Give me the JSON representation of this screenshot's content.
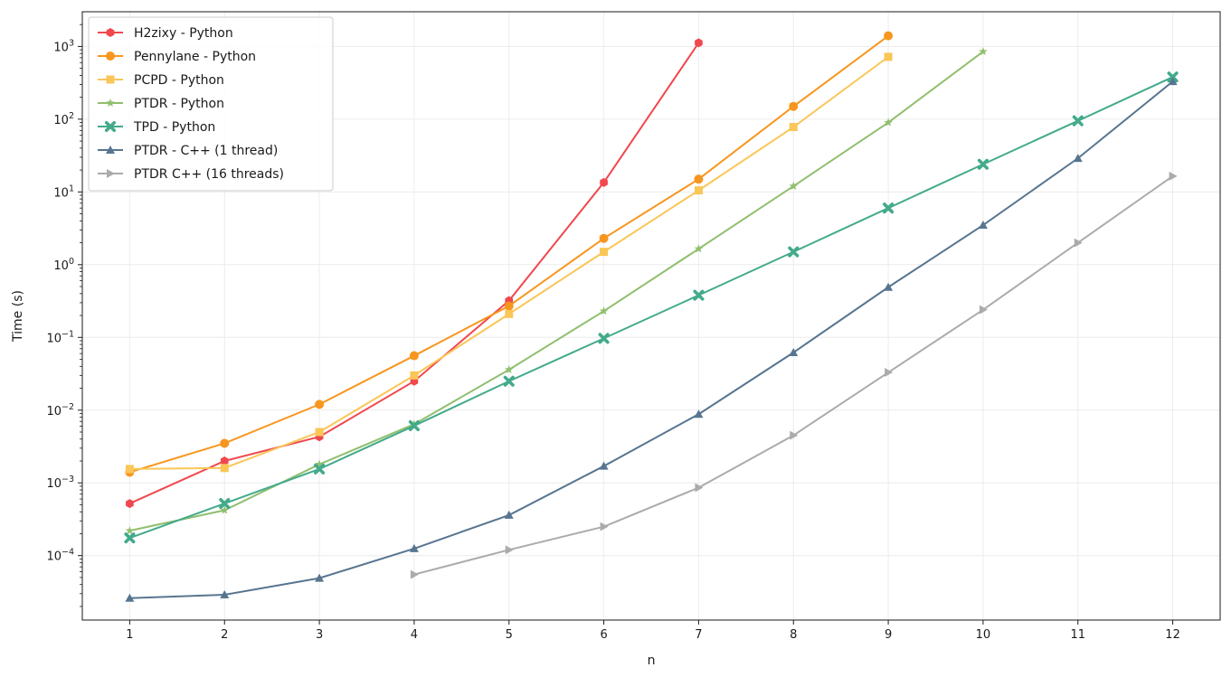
{
  "chart_data": {
    "type": "line",
    "title": "",
    "xlabel": "n",
    "ylabel": "Time (s)",
    "yscale": "log",
    "xlim": [
      0.5,
      12.5
    ],
    "ylim": [
      1.3e-05,
      3000
    ],
    "x_ticks": [
      1,
      2,
      3,
      4,
      5,
      6,
      7,
      8,
      9,
      10,
      11,
      12
    ],
    "y_ticks": [
      {
        "value": 0.0001,
        "base": "10",
        "exp": "−4"
      },
      {
        "value": 0.001,
        "base": "10",
        "exp": "−3"
      },
      {
        "value": 0.01,
        "base": "10",
        "exp": "−2"
      },
      {
        "value": 0.1,
        "base": "10",
        "exp": "−1"
      },
      {
        "value": 1,
        "base": "10",
        "exp": "0"
      },
      {
        "value": 10,
        "base": "10",
        "exp": "1"
      },
      {
        "value": 100,
        "base": "10",
        "exp": "2"
      },
      {
        "value": 1000,
        "base": "10",
        "exp": "3"
      }
    ],
    "grid": true,
    "legend_position": "top-left",
    "series": [
      {
        "name": "H2zixy - Python",
        "color": "#f0484e",
        "marker": "hexagon",
        "x": [
          1,
          2,
          3,
          4,
          5,
          6,
          7
        ],
        "y": [
          0.00052,
          0.002,
          0.0043,
          0.025,
          0.32,
          13.5,
          1120
        ]
      },
      {
        "name": "Pennylane - Python",
        "color": "#f7961e",
        "marker": "circle",
        "x": [
          1,
          2,
          3,
          4,
          5,
          6,
          7,
          8,
          9
        ],
        "y": [
          0.0014,
          0.0035,
          0.012,
          0.056,
          0.27,
          2.3,
          15,
          150,
          1400
        ]
      },
      {
        "name": "PCPD - Python",
        "color": "#fac657",
        "marker": "square",
        "x": [
          1,
          2,
          3,
          4,
          5,
          6,
          7,
          8,
          9
        ],
        "y": [
          0.00155,
          0.0016,
          0.005,
          0.03,
          0.21,
          1.5,
          10.5,
          78,
          720
        ]
      },
      {
        "name": "PTDR - Python",
        "color": "#90bf6e",
        "marker": "star",
        "x": [
          1,
          2,
          3,
          4,
          5,
          6,
          7,
          8,
          9,
          10
        ],
        "y": [
          0.00022,
          0.00042,
          0.0018,
          0.0064,
          0.036,
          0.23,
          1.65,
          12,
          90,
          850
        ]
      },
      {
        "name": "TPD - Python",
        "color": "#43aa8b",
        "marker": "x",
        "x": [
          1,
          2,
          3,
          4,
          5,
          6,
          7,
          8,
          9,
          10,
          11,
          12
        ],
        "y": [
          0.000175,
          0.00052,
          0.00155,
          0.0061,
          0.025,
          0.097,
          0.38,
          1.5,
          6,
          24,
          95,
          380
        ]
      },
      {
        "name": "PTDR - C++ (1 thread)",
        "color": "#577590",
        "marker": "triangle-up",
        "x": [
          1,
          2,
          3,
          4,
          5,
          6,
          7,
          8,
          9,
          10,
          11,
          12
        ],
        "y": [
          2.6e-05,
          2.9e-05,
          4.9e-05,
          0.000125,
          0.00036,
          0.0017,
          0.0088,
          0.062,
          0.49,
          3.5,
          29,
          330
        ]
      },
      {
        "name": "PTDR C++ (16 threads)",
        "color": "#ababab",
        "marker": "triangle-right",
        "x": [
          4,
          5,
          6,
          7,
          8,
          9,
          10,
          11,
          12
        ],
        "y": [
          5.5e-05,
          0.00012,
          0.00025,
          0.00086,
          0.0045,
          0.033,
          0.24,
          2.0,
          16.5
        ]
      }
    ]
  }
}
